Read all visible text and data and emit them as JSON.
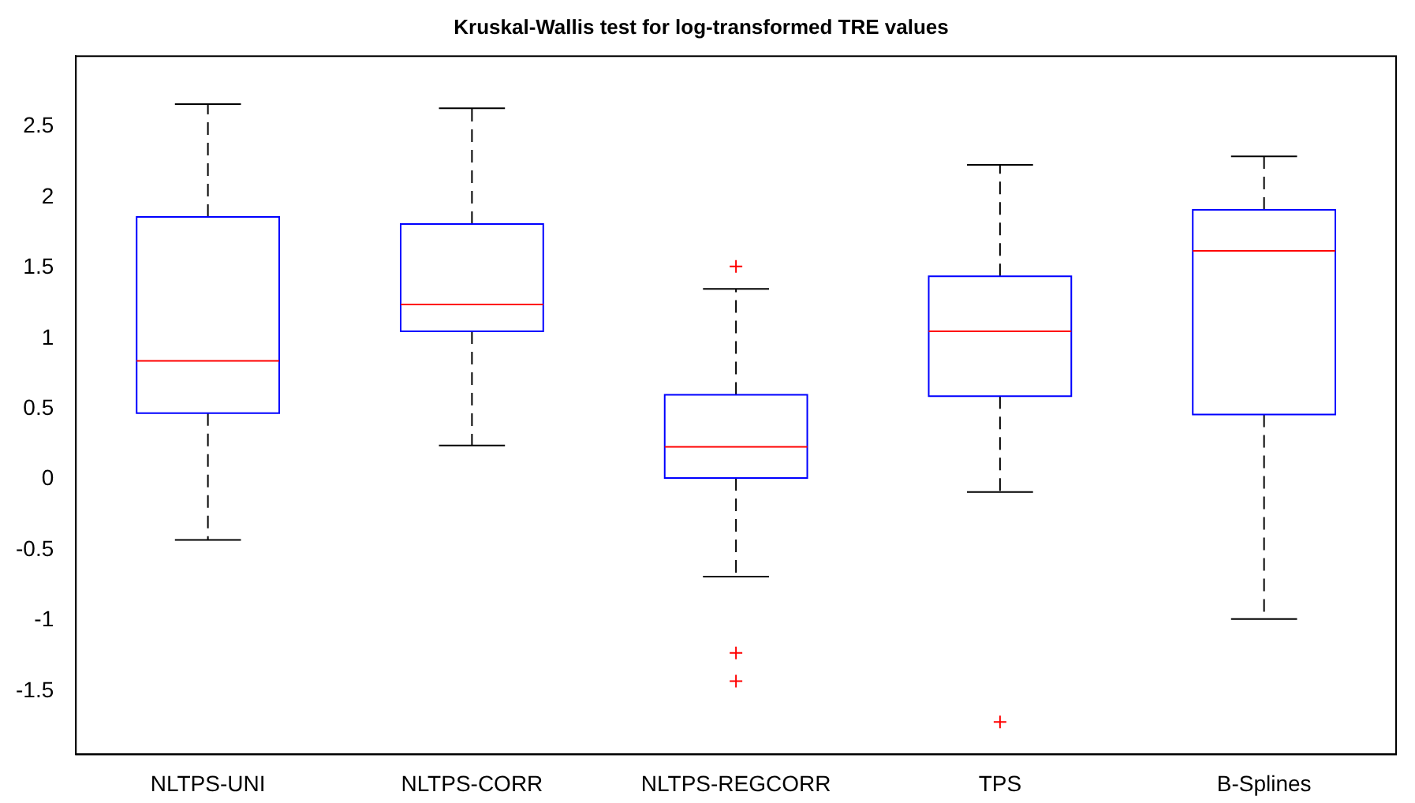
{
  "chart_data": {
    "type": "box",
    "title": "Kruskal-Wallis test for log-transformed TRE values",
    "categories": [
      "NLTPS-UNI",
      "NLTPS-CORR",
      "NLTPS-REGCORR",
      "TPS",
      "B-Splines"
    ],
    "series": [
      {
        "color": "#0000ff",
        "boxes": [
          {
            "low": -0.43,
            "q1": 0.47,
            "median": 0.84,
            "q3": 1.86,
            "high": 2.66
          },
          {
            "low": 0.24,
            "q1": 1.05,
            "median": 1.24,
            "q3": 1.81,
            "high": 2.63
          },
          {
            "low": -0.69,
            "q1": 0.01,
            "median": 0.23,
            "q3": 0.6,
            "high": 1.35,
            "outliers": [
              1.51,
              -1.23,
              -1.43
            ]
          },
          {
            "low": -0.09,
            "q1": 0.59,
            "median": 1.05,
            "q3": 1.44,
            "high": 2.23,
            "outliers": [
              -1.72
            ]
          },
          {
            "low": -0.99,
            "q1": 0.46,
            "median": 1.62,
            "q3": 1.91,
            "high": 2.29
          }
        ]
      }
    ],
    "ylim": [
      -1.95,
      3
    ],
    "yticks": [
      -1.5,
      -1,
      -0.5,
      0,
      0.5,
      1,
      1.5,
      2,
      2.5
    ],
    "grid": false,
    "legend": false,
    "marker": "cross"
  }
}
